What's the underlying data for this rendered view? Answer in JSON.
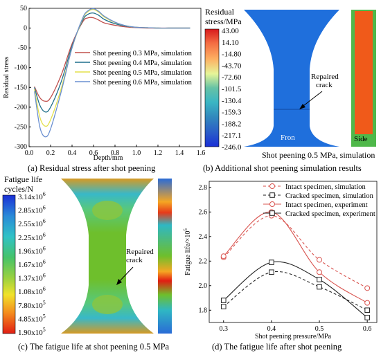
{
  "captions": {
    "a": "(a) Residual stress after shot peening",
    "b": "(b) Additional shot peening simulation results",
    "c": "(c) The fatigue life at shot peening 0.5 MPa",
    "d": "(d) The fatigue life after shot peening"
  },
  "panel_b": {
    "colorbar_title_1": "Residual",
    "colorbar_title_2": "stress/MPa",
    "colorbar_ticks": [
      "43.00",
      "14.10",
      "-14.80",
      "-43.70",
      "-72.60",
      "-101.5",
      "-130.4",
      "-159.3",
      "-188.2",
      "-217.1",
      "-246.0"
    ],
    "front_label": "Fron",
    "side_label": "Side",
    "annotation": "Repaired crack",
    "sim_title": "Shot peening 0.5 MPa, simulation"
  },
  "panel_c": {
    "colorbar_title_1": "Fatigue life",
    "colorbar_title_2": "cycles/N",
    "colorbar_ticks": [
      "3.14x10^6",
      "2.85x10^6",
      "2.55x10^6",
      "2.25x10^6",
      "1.96x10^6",
      "1.67x10^6",
      "1.37x10^6",
      "1.08x10^6",
      "7.80x10^5",
      "4.85x10^5",
      "1.90x10^5"
    ],
    "annotation": "Repaired crack"
  },
  "colors": {
    "s03": "#c0504d",
    "s04": "#1f6f8b",
    "s05": "#e3e04a",
    "s06": "#6a8fd0",
    "intact": "#d9544f",
    "cracked": "#222222"
  },
  "chart_data": [
    {
      "type": "line",
      "title": "",
      "xlabel": "Depth/mm",
      "ylabel": "Residual stress",
      "xlim": [
        0,
        1.6
      ],
      "ylim": [
        -300,
        50
      ],
      "xticks": [
        "0.0",
        "0.2",
        "0.4",
        "0.6",
        "0.8",
        "1.0",
        "1.2",
        "1.4",
        "1.6"
      ],
      "yticks": [
        "50",
        "0",
        "-50",
        "-100",
        "-150",
        "-200",
        "-250",
        "-300"
      ],
      "legend_position": "center-right",
      "series": [
        {
          "name": "Shot peening 0.3 MPa, simulation",
          "x": [
            0.05,
            0.1,
            0.15,
            0.2,
            0.3,
            0.4,
            0.5,
            0.55,
            0.6,
            0.65,
            0.7,
            0.8,
            0.9,
            1.0,
            1.1,
            1.2,
            1.3,
            1.4,
            1.5
          ],
          "y": [
            -148,
            -176,
            -185,
            -176,
            -118,
            -40,
            16,
            26,
            26,
            20,
            13,
            7,
            3,
            1,
            0,
            0,
            0,
            0,
            0
          ]
        },
        {
          "name": "Shot peening 0.4 MPa, simulation",
          "x": [
            0.05,
            0.1,
            0.15,
            0.2,
            0.3,
            0.4,
            0.5,
            0.55,
            0.6,
            0.65,
            0.7,
            0.8,
            0.9,
            1.0,
            1.1,
            1.2,
            1.3,
            1.4,
            1.5
          ],
          "y": [
            -150,
            -195,
            -212,
            -200,
            -135,
            -45,
            20,
            35,
            38,
            32,
            22,
            11,
            5,
            2,
            1,
            0,
            0,
            0,
            0
          ]
        },
        {
          "name": "Shot peening 0.5 MPa, simulation",
          "x": [
            0.05,
            0.1,
            0.15,
            0.2,
            0.3,
            0.4,
            0.5,
            0.55,
            0.6,
            0.65,
            0.7,
            0.8,
            0.9,
            1.0,
            1.1,
            1.2,
            1.3,
            1.4,
            1.5
          ],
          "y": [
            -155,
            -225,
            -248,
            -232,
            -152,
            -50,
            24,
            42,
            47,
            40,
            28,
            14,
            6,
            2,
            1,
            0,
            0,
            0,
            0
          ]
        },
        {
          "name": "Shot peening 0.6 MPa, simulation",
          "x": [
            0.05,
            0.1,
            0.15,
            0.2,
            0.3,
            0.4,
            0.5,
            0.55,
            0.6,
            0.65,
            0.7,
            0.8,
            0.9,
            1.0,
            1.1,
            1.2,
            1.3,
            1.4,
            1.5
          ],
          "y": [
            -160,
            -250,
            -275,
            -255,
            -160,
            -50,
            26,
            44,
            49,
            42,
            30,
            15,
            6,
            2,
            1,
            0,
            0,
            0,
            0
          ]
        }
      ]
    },
    {
      "type": "line",
      "title": "",
      "xlabel": "Shot peening pressure/MPa",
      "ylabel": "Fatigue life/×10^5",
      "xlim": [
        0.27,
        0.62
      ],
      "ylim": [
        1.7,
        2.85
      ],
      "xticks": [
        "0.3",
        "0.4",
        "0.5",
        "0.6"
      ],
      "yticks": [
        "1.8",
        "2.0",
        "2.2",
        "2.4",
        "2.6",
        "2.8"
      ],
      "legend_position": "top",
      "categories": [
        0.3,
        0.4,
        0.5,
        0.6
      ],
      "series": [
        {
          "name": "Intact specimen, simulation",
          "values": [
            2.23,
            2.57,
            2.21,
            1.98
          ]
        },
        {
          "name": "Cracked specimen, simulation",
          "values": [
            1.83,
            2.11,
            1.99,
            1.8
          ]
        },
        {
          "name": "Intact specimen, experiment",
          "values": [
            2.24,
            2.6,
            2.11,
            1.86
          ]
        },
        {
          "name": "Cracked specimen, experiment",
          "values": [
            1.88,
            2.19,
            2.05,
            1.74
          ]
        }
      ]
    }
  ]
}
